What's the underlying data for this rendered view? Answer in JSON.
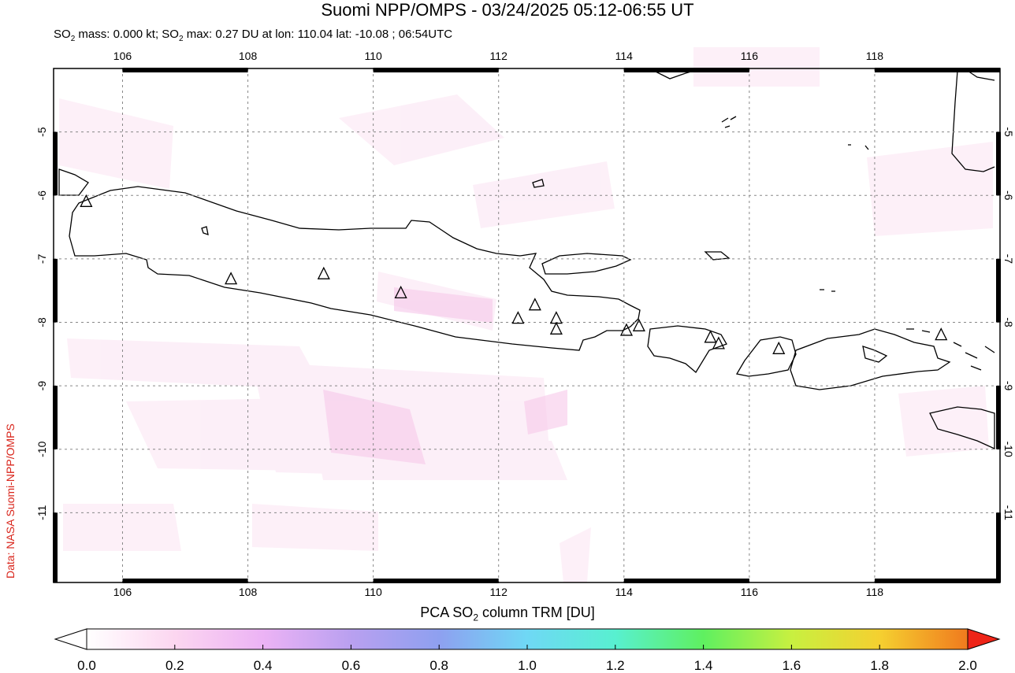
{
  "title": "Suomi NPP/OMPS - 03/24/2025 05:12-06:55 UT",
  "subtitle": {
    "prefix": "SO",
    "sub": "2",
    "mid1": " mass: 0.000 kt; SO",
    "sub2": "2",
    "rest": " max: 0.27 DU at lon: 110.04 lat: -10.08 ; 06:54UTC"
  },
  "credit": "Data: NASA Suomi-NPP/OMPS",
  "map": {
    "lon_range": [
      104.9,
      120.0
    ],
    "lat_range": [
      -12.1,
      -4.0
    ],
    "lon_ticks": [
      "106",
      "108",
      "110",
      "112",
      "114",
      "116",
      "118"
    ],
    "lat_ticks": [
      "-5",
      "-6",
      "-7",
      "-8",
      "-9",
      "-10",
      "-11"
    ],
    "grid": "dashed",
    "volcanoes": [
      {
        "lon": 105.42,
        "lat": -6.1
      },
      {
        "lon": 107.73,
        "lat": -7.32
      },
      {
        "lon": 109.21,
        "lat": -7.24
      },
      {
        "lon": 110.44,
        "lat": -7.54
      },
      {
        "lon": 112.31,
        "lat": -7.94
      },
      {
        "lon": 112.58,
        "lat": -7.73
      },
      {
        "lon": 112.92,
        "lat": -7.94
      },
      {
        "lon": 112.92,
        "lat": -8.11
      },
      {
        "lon": 114.04,
        "lat": -8.13
      },
      {
        "lon": 114.24,
        "lat": -8.06
      },
      {
        "lon": 115.38,
        "lat": -8.24
      },
      {
        "lon": 115.51,
        "lat": -8.34
      },
      {
        "lon": 116.47,
        "lat": -8.42
      },
      {
        "lon": 119.06,
        "lat": -8.2
      }
    ]
  },
  "colorbar": {
    "title_prefix": "PCA SO",
    "title_sub": "2",
    "title_suffix": " column TRM [DU]",
    "ticks": [
      "0.0",
      "0.2",
      "0.4",
      "0.6",
      "0.8",
      "1.0",
      "1.2",
      "1.4",
      "1.6",
      "1.8",
      "2.0"
    ],
    "colors": [
      "#ffffff",
      "#fcd6f0",
      "#ecb3f5",
      "#b9a0f0",
      "#8ea0f0",
      "#6fd8f5",
      "#58f0d0",
      "#5ff060",
      "#c8f040",
      "#f5d030",
      "#f07a1e",
      "#ee2418"
    ]
  }
}
